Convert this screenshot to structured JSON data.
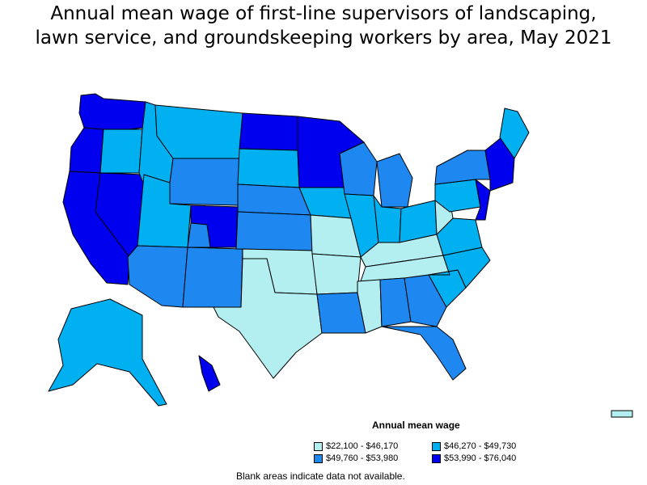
{
  "title_line1": "Annual mean wage of first-line supervisors of landscaping,",
  "title_line2": "lawn service, and groundskeeping workers by area, May 2021",
  "legend": {
    "title": "Annual mean wage",
    "items": [
      {
        "label": "$22,100 - $46,170",
        "color": "#b3eef0"
      },
      {
        "label": "$46,270 - $49,730",
        "color": "#00b0f0"
      },
      {
        "label": "$49,760 - $53,980",
        "color": "#1e88f0"
      },
      {
        "label": "$53,990 - $76,040",
        "color": "#0000ee"
      }
    ]
  },
  "note": "Blank areas indicate data not available.",
  "regions": [
    {
      "name": "washington",
      "class": 4
    },
    {
      "name": "oregon-coast",
      "class": 4
    },
    {
      "name": "oregon-east",
      "class": 2
    },
    {
      "name": "california",
      "class": 4
    },
    {
      "name": "nevada",
      "class": 4
    },
    {
      "name": "idaho",
      "class": 2
    },
    {
      "name": "montana",
      "class": 2
    },
    {
      "name": "wyoming",
      "class": 3
    },
    {
      "name": "utah",
      "class": 2
    },
    {
      "name": "colorado-front",
      "class": 4
    },
    {
      "name": "colorado-west",
      "class": 3
    },
    {
      "name": "arizona",
      "class": 3
    },
    {
      "name": "new-mexico",
      "class": 3
    },
    {
      "name": "north-dakota",
      "class": 4
    },
    {
      "name": "south-dakota",
      "class": 2
    },
    {
      "name": "nebraska",
      "class": 3
    },
    {
      "name": "kansas",
      "class": 3
    },
    {
      "name": "oklahoma",
      "class": 1
    },
    {
      "name": "texas",
      "class": 1
    },
    {
      "name": "minnesota",
      "class": 4
    },
    {
      "name": "iowa",
      "class": 2
    },
    {
      "name": "missouri",
      "class": 1
    },
    {
      "name": "arkansas",
      "class": 1
    },
    {
      "name": "louisiana",
      "class": 3
    },
    {
      "name": "wisconsin",
      "class": 3
    },
    {
      "name": "illinois",
      "class": 2
    },
    {
      "name": "michigan",
      "class": 3
    },
    {
      "name": "indiana",
      "class": 2
    },
    {
      "name": "ohio",
      "class": 2
    },
    {
      "name": "kentucky",
      "class": 1
    },
    {
      "name": "tennessee",
      "class": 1
    },
    {
      "name": "mississippi",
      "class": 1
    },
    {
      "name": "alabama",
      "class": 3
    },
    {
      "name": "georgia",
      "class": 3
    },
    {
      "name": "florida",
      "class": 3
    },
    {
      "name": "south-carolina",
      "class": 2
    },
    {
      "name": "north-carolina",
      "class": 2
    },
    {
      "name": "virginia",
      "class": 2
    },
    {
      "name": "west-virginia",
      "class": 1
    },
    {
      "name": "pennsylvania",
      "class": 2
    },
    {
      "name": "new-york",
      "class": 3
    },
    {
      "name": "new-england",
      "class": 4
    },
    {
      "name": "maine",
      "class": 2
    },
    {
      "name": "mid-atlantic-coast",
      "class": 4
    },
    {
      "name": "alaska",
      "class": 2
    },
    {
      "name": "hawaii",
      "class": 4
    }
  ]
}
